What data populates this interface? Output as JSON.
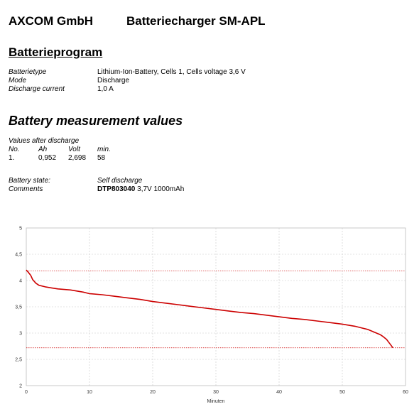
{
  "header": {
    "company": "AXCOM GmbH",
    "product": "Batteriecharger SM-APL"
  },
  "program": {
    "title": "Batterieprogram",
    "rows": [
      {
        "label": "Batterietype",
        "value": "Lithium-Ion-Battery, Cells 1, Cells voltage 3,6 V"
      },
      {
        "label": "Mode",
        "value": "Discharge"
      },
      {
        "label": "Discharge current",
        "value": "1,0 A"
      }
    ]
  },
  "measurement": {
    "title": "Battery measurement values",
    "caption": "Values after discharge",
    "headers": [
      "No.",
      "Ah",
      "Volt",
      "min."
    ],
    "row": [
      "1.",
      "0,952",
      "2,698",
      "58"
    ],
    "state_label": "Battery state:",
    "state_value": "Self discharge",
    "comments_label": "Comments",
    "comments_bold": "DTP803040",
    "comments_rest": " 3,7V 1000mAh"
  },
  "chart_data": {
    "type": "line",
    "title": "",
    "xlabel": "Minuten",
    "ylabel": "",
    "xlim": [
      0,
      60
    ],
    "ylim": [
      2,
      5
    ],
    "x_ticks": [
      "0",
      "10",
      "20",
      "30",
      "40",
      "50",
      "60"
    ],
    "y_ticks": [
      "2",
      "2,5",
      "3",
      "3,5",
      "4",
      "4,5",
      "5"
    ],
    "grid": true,
    "line_color": "#cc0000",
    "reference_lines": [
      4.18,
      2.72
    ],
    "series": [
      {
        "x": [
          0,
          0.3,
          0.7,
          1.0,
          1.5,
          2.0,
          3.0,
          4.0,
          5.0,
          6.0,
          7.0,
          8.0,
          9.0,
          10.0,
          12.0,
          14.0,
          16.0,
          18.0,
          20.0,
          22.0,
          24.0,
          26.0,
          28.0,
          30.0,
          32.0,
          34.0,
          36.0,
          38.0,
          40.0,
          42.0,
          44.0,
          46.0,
          48.0,
          50.0,
          51.0,
          52.0,
          53.0,
          54.0,
          55.0,
          56.0,
          56.5,
          57.0,
          57.5,
          58.0
        ],
        "y": [
          4.2,
          4.16,
          4.1,
          4.02,
          3.95,
          3.91,
          3.88,
          3.86,
          3.84,
          3.83,
          3.82,
          3.8,
          3.78,
          3.75,
          3.73,
          3.7,
          3.67,
          3.64,
          3.6,
          3.57,
          3.54,
          3.51,
          3.48,
          3.45,
          3.42,
          3.39,
          3.37,
          3.34,
          3.31,
          3.28,
          3.26,
          3.23,
          3.2,
          3.17,
          3.15,
          3.13,
          3.1,
          3.07,
          3.02,
          2.97,
          2.93,
          2.88,
          2.8,
          2.72
        ]
      }
    ]
  }
}
